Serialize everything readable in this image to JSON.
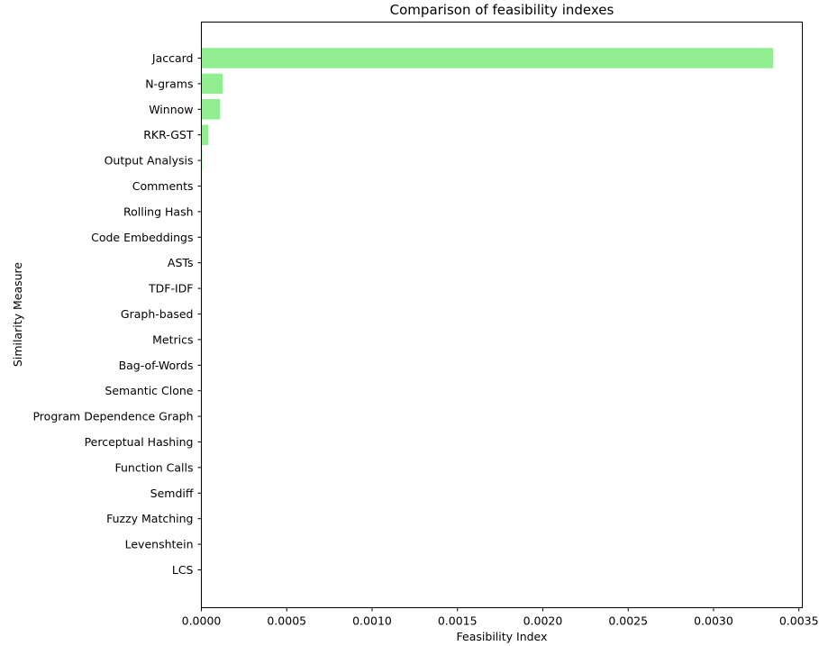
{
  "chart_data": {
    "type": "bar",
    "orientation": "horizontal",
    "title": "Comparison of feasibility indexes",
    "xlabel": "Feasibility Index",
    "ylabel": "Similarity Measure",
    "categories": [
      "Jaccard",
      "N-grams",
      "Winnow",
      "RKR-GST",
      "Output Analysis",
      "Comments",
      "Rolling Hash",
      "Code Embeddings",
      "ASTs",
      "TDF-IDF",
      "Graph-based",
      "Metrics",
      "Bag-of-Words",
      "Semantic Clone",
      "Program Dependence Graph",
      "Perceptual Hashing",
      "Function Calls",
      "Semdiff",
      "Fuzzy Matching",
      "Levenshtein",
      "LCS"
    ],
    "values": [
      0.00335,
      0.000125,
      0.00011,
      4e-05,
      5e-06,
      0,
      0,
      0,
      0,
      0,
      0,
      0,
      0,
      0,
      0,
      0,
      0,
      0,
      0,
      0,
      0
    ],
    "xlim": [
      0,
      0.00352
    ],
    "xticks": [
      {
        "value": 0,
        "label": "0.0000"
      },
      {
        "value": 0.0005,
        "label": "0.0005"
      },
      {
        "value": 0.001,
        "label": "0.0010"
      },
      {
        "value": 0.0015,
        "label": "0.0015"
      },
      {
        "value": 0.002,
        "label": "0.0020"
      },
      {
        "value": 0.0025,
        "label": "0.0025"
      },
      {
        "value": 0.003,
        "label": "0.0030"
      },
      {
        "value": 0.0035,
        "label": "0.0035"
      }
    ],
    "bar_color": "#90ee90",
    "grid": false,
    "legend": false
  }
}
